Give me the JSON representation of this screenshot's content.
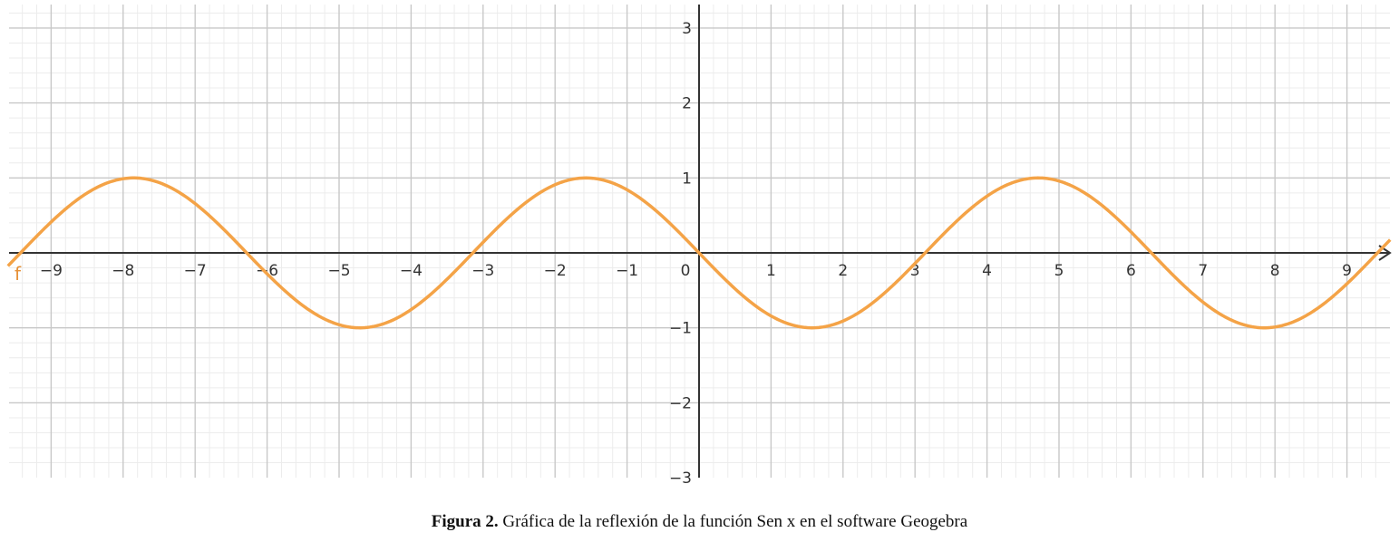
{
  "chart_data": {
    "type": "line",
    "title": "",
    "xlabel": "",
    "ylabel": "",
    "xlim": [
      -9.6,
      9.6
    ],
    "ylim": [
      -3.05,
      3.25
    ],
    "x_ticks": [
      -9,
      -8,
      -7,
      -6,
      -5,
      -4,
      -3,
      -2,
      -1,
      0,
      1,
      2,
      3,
      4,
      5,
      6,
      7,
      8,
      9
    ],
    "x_tick_labels": [
      "−9",
      "−8",
      "−7",
      "−6",
      "−5",
      "−4",
      "−3",
      "−2",
      "−1",
      "0",
      "1",
      "2",
      "3",
      "4",
      "5",
      "6",
      "7",
      "8",
      "9"
    ],
    "y_ticks": [
      -3,
      -2,
      -1,
      1,
      2,
      3
    ],
    "y_tick_labels": [
      "−3",
      "−2",
      "−1",
      "1",
      "2",
      "3"
    ],
    "grid": true,
    "minor_grid_per_unit": 5,
    "series": [
      {
        "name": "f",
        "function": "-sin(x)",
        "color": "#f4a347",
        "x": [
          -9.6,
          -9.0,
          -8.5,
          -7.854,
          -7.5,
          -7.0,
          -6.5,
          -6.283,
          -6.0,
          -5.5,
          -4.712,
          -4.0,
          -3.5,
          -3.142,
          -3.0,
          -2.5,
          -1.571,
          -1.0,
          -0.5,
          0.0,
          0.5,
          1.0,
          1.571,
          2.0,
          2.5,
          3.0,
          3.142,
          3.5,
          4.0,
          4.712,
          5.5,
          6.0,
          6.283,
          6.5,
          7.0,
          7.5,
          7.854,
          8.5,
          9.0,
          9.6
        ],
        "y": [
          -0.174,
          0.412,
          0.798,
          1.0,
          0.938,
          0.657,
          0.215,
          0.0,
          -0.279,
          -0.706,
          -1.0,
          -0.757,
          -0.351,
          0.0,
          0.141,
          0.598,
          1.0,
          0.841,
          0.479,
          0.0,
          -0.479,
          -0.841,
          -1.0,
          -0.909,
          -0.598,
          -0.141,
          0.0,
          0.351,
          0.757,
          1.0,
          0.706,
          0.279,
          0.0,
          -0.215,
          -0.657,
          -0.938,
          -1.0,
          -0.798,
          -0.412,
          0.174
        ]
      }
    ]
  },
  "caption": {
    "label": "Figura 2.",
    "text": " Gráfica de la reflexión de la función Sen x en el software Geogebra"
  }
}
